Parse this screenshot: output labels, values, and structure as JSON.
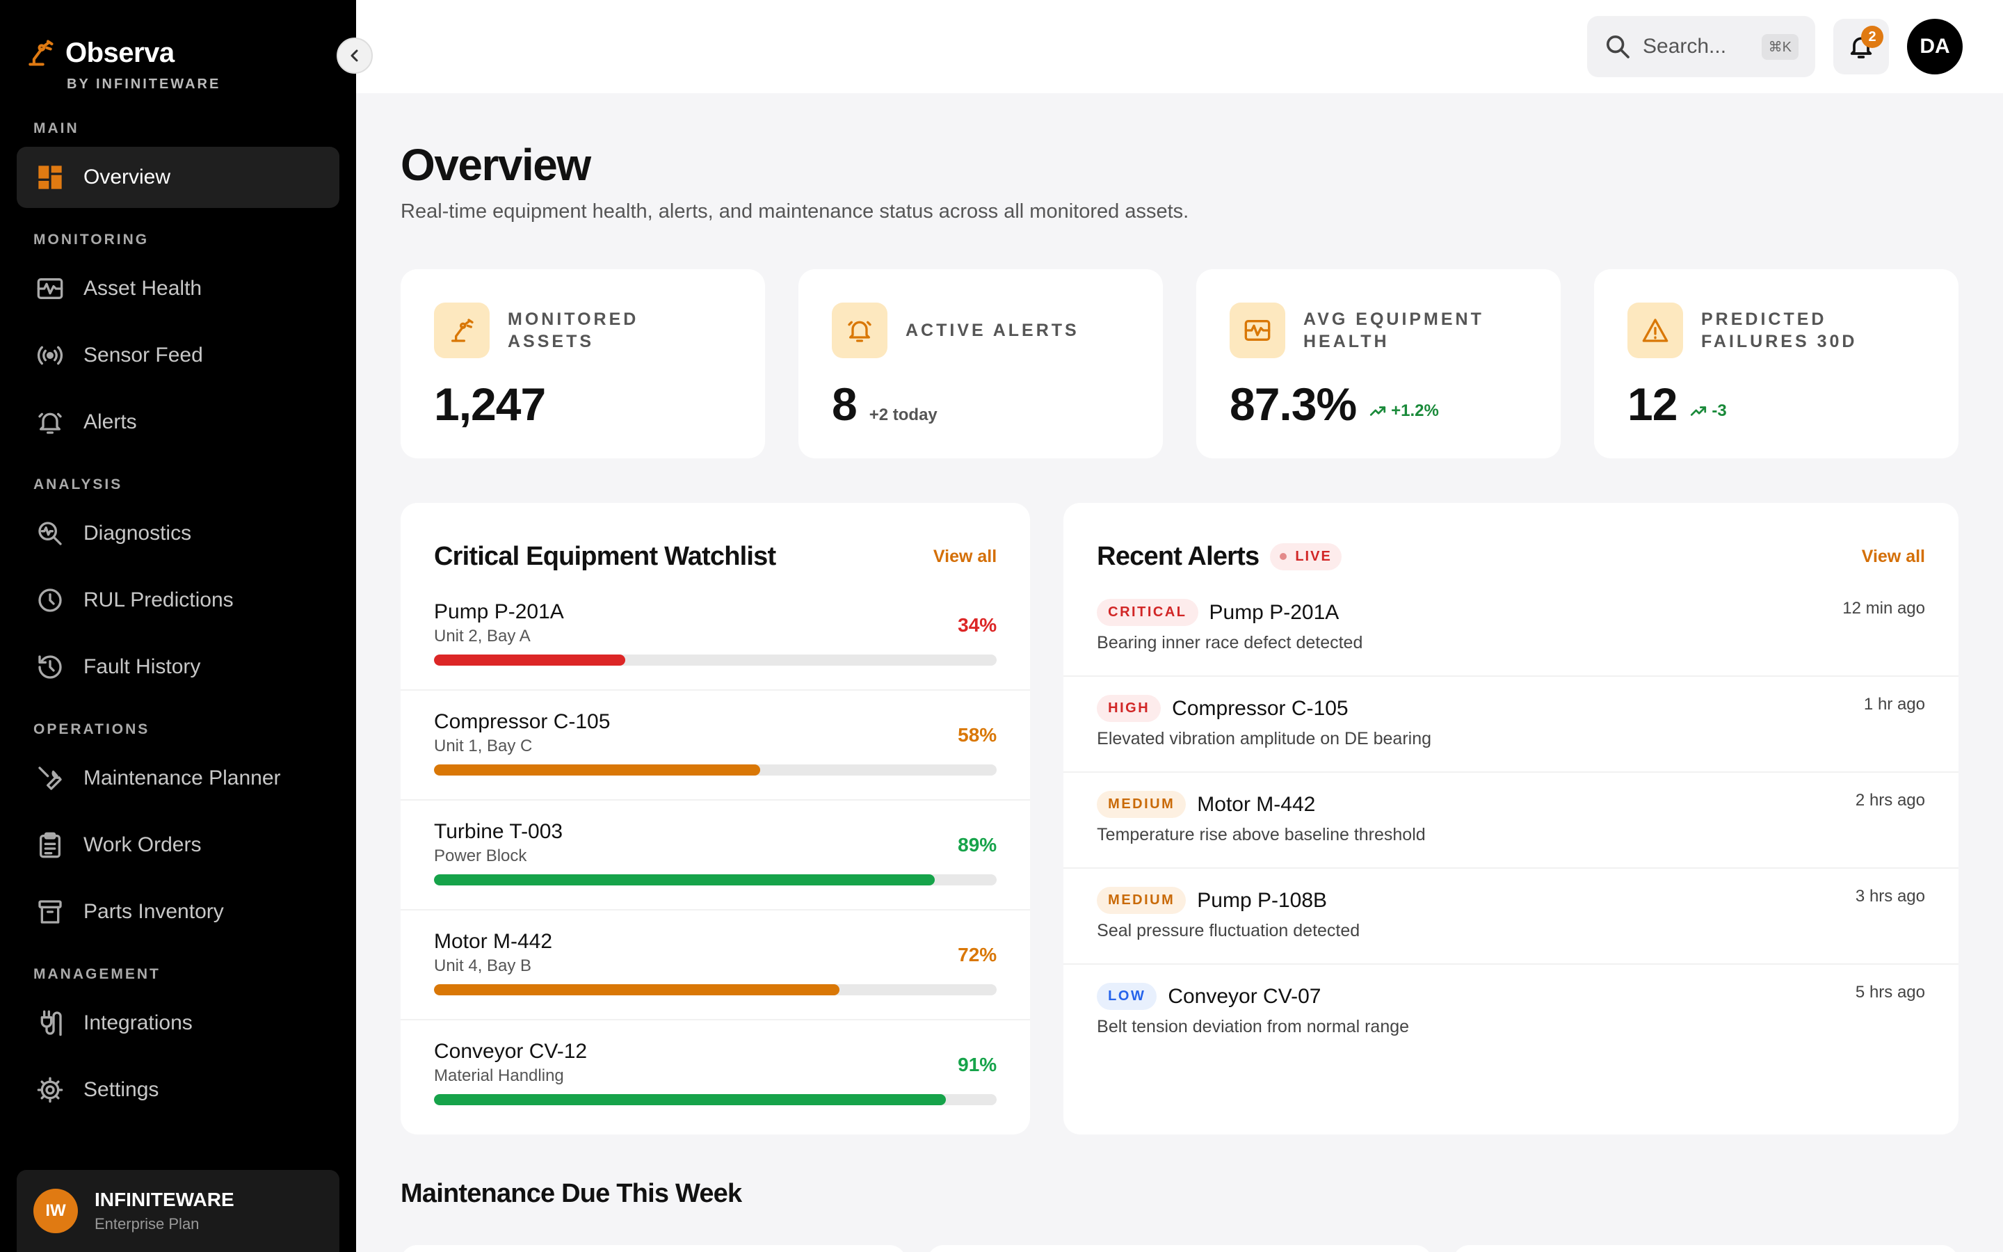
{
  "brand": {
    "name": "Observa",
    "sub": "BY INFINITEWARE"
  },
  "nav": {
    "sections": [
      {
        "label": "MAIN",
        "items": [
          {
            "label": "Overview",
            "icon": "grid-icon",
            "active": true
          }
        ]
      },
      {
        "label": "MONITORING",
        "items": [
          {
            "label": "Asset Health",
            "icon": "pulse-icon"
          },
          {
            "label": "Sensor Feed",
            "icon": "broadcast-icon"
          },
          {
            "label": "Alerts",
            "icon": "bell-icon"
          }
        ]
      },
      {
        "label": "ANALYSIS",
        "items": [
          {
            "label": "Diagnostics",
            "icon": "search-wave-icon"
          },
          {
            "label": "RUL Predictions",
            "icon": "clock-icon"
          },
          {
            "label": "Fault History",
            "icon": "history-icon"
          }
        ]
      },
      {
        "label": "OPERATIONS",
        "items": [
          {
            "label": "Maintenance Planner",
            "icon": "wrench-icon"
          },
          {
            "label": "Work Orders",
            "icon": "clipboard-icon"
          },
          {
            "label": "Parts Inventory",
            "icon": "archive-icon"
          }
        ]
      },
      {
        "label": "MANAGEMENT",
        "items": [
          {
            "label": "Integrations",
            "icon": "plug-icon"
          },
          {
            "label": "Settings",
            "icon": "gear-icon"
          }
        ]
      }
    ]
  },
  "org": {
    "initials": "IW",
    "name": "INFINITEWARE",
    "plan": "Enterprise Plan"
  },
  "topbar": {
    "search_placeholder": "Search...",
    "shortcut": "⌘K",
    "notifications": "2",
    "user_initials": "DA"
  },
  "page": {
    "title": "Overview",
    "subtitle": "Real-time equipment health, alerts, and maintenance status across all monitored assets."
  },
  "stats": [
    {
      "label": "MONITORED ASSETS",
      "value": "1,247",
      "delta": "",
      "icon": "robot-arm-icon"
    },
    {
      "label": "ACTIVE ALERTS",
      "value": "8",
      "delta": "+2 today",
      "icon": "bell-icon"
    },
    {
      "label": "AVG EQUIPMENT HEALTH",
      "value": "87.3%",
      "delta": "+1.2%",
      "icon": "pulse-icon"
    },
    {
      "label": "PREDICTED FAILURES 30D",
      "value": "12",
      "delta": "-3",
      "icon": "warning-icon"
    }
  ],
  "watchlist": {
    "title": "Critical Equipment Watchlist",
    "view_all": "View all",
    "items": [
      {
        "name": "Pump P-201A",
        "location": "Unit 2, Bay A",
        "pct": "34%",
        "value": 34,
        "color": "#dc2626"
      },
      {
        "name": "Compressor C-105",
        "location": "Unit 1, Bay C",
        "pct": "58%",
        "value": 58,
        "color": "#d97706"
      },
      {
        "name": "Turbine T-003",
        "location": "Power Block",
        "pct": "89%",
        "value": 89,
        "color": "#16a34a"
      },
      {
        "name": "Motor M-442",
        "location": "Unit 4, Bay B",
        "pct": "72%",
        "value": 72,
        "color": "#d97706"
      },
      {
        "name": "Conveyor CV-12",
        "location": "Material Handling",
        "pct": "91%",
        "value": 91,
        "color": "#16a34a"
      }
    ]
  },
  "alerts": {
    "title": "Recent Alerts",
    "live": "LIVE",
    "view_all": "View all",
    "items": [
      {
        "severity": "CRITICAL",
        "asset": "Pump P-201A",
        "desc": "Bearing inner race defect detected",
        "time": "12 min ago",
        "fg": "#d12626",
        "bg": "#fdecec"
      },
      {
        "severity": "HIGH",
        "asset": "Compressor C-105",
        "desc": "Elevated vibration amplitude on DE bearing",
        "time": "1 hr ago",
        "fg": "#d12626",
        "bg": "#fdecec"
      },
      {
        "severity": "MEDIUM",
        "asset": "Motor M-442",
        "desc": "Temperature rise above baseline threshold",
        "time": "2 hrs ago",
        "fg": "#c96a08",
        "bg": "#fdf0e1"
      },
      {
        "severity": "MEDIUM",
        "asset": "Pump P-108B",
        "desc": "Seal pressure fluctuation detected",
        "time": "3 hrs ago",
        "fg": "#c96a08",
        "bg": "#fdf0e1"
      },
      {
        "severity": "LOW",
        "asset": "Conveyor CV-07",
        "desc": "Belt tension deviation from normal range",
        "time": "5 hrs ago",
        "fg": "#2563eb",
        "bg": "#e8f0fd"
      }
    ]
  },
  "maintenance": {
    "title": "Maintenance Due This Week"
  }
}
